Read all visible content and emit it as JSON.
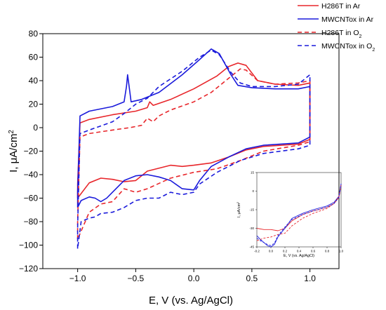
{
  "chart_data": [
    {
      "type": "line",
      "xlabel": "E, V (vs. Ag/AgCl)",
      "ylabel_main": "I, μA/cm",
      "ylabel_sup": "2",
      "xlim": [
        -1.3,
        1.25
      ],
      "ylim": [
        -120,
        80
      ],
      "xticks": [
        -1.0,
        -0.5,
        0.0,
        0.5,
        1.0
      ],
      "xtick_labels": [
        "−1.0",
        "−0.5",
        "0.0",
        "0.5",
        "1.0"
      ],
      "yticks": [
        -120,
        -100,
        -80,
        -60,
        -40,
        -20,
        0,
        20,
        40,
        60,
        80
      ],
      "ytick_labels": [
        "−120",
        "−100",
        "−80",
        "−60",
        "−40",
        "−20",
        "0",
        "20",
        "40",
        "60",
        "80"
      ],
      "grid": false,
      "legend": {
        "placement": "top-right",
        "entries": [
          {
            "text": "H286T in Ar",
            "sub": "",
            "color": "#e8262b",
            "dash": false
          },
          {
            "text": "MWCNTox in Ar",
            "sub": "",
            "color": "#1a1adb",
            "dash": false
          },
          {
            "text": "H286T in O",
            "sub": "2",
            "color": "#e8262b",
            "dash": true
          },
          {
            "text": "MWCNTox in O",
            "sub": "2",
            "color": "#1a1adb",
            "dash": true
          }
        ]
      },
      "series": [
        {
          "color": "#e8262b",
          "dash": false,
          "points": [
            [
              -1.0,
              -60
            ],
            [
              -1.0,
              -48
            ],
            [
              -0.98,
              4
            ],
            [
              -0.9,
              7
            ],
            [
              -0.7,
              11
            ],
            [
              -0.5,
              14
            ],
            [
              -0.4,
              17
            ],
            [
              -0.38,
              22
            ],
            [
              -0.35,
              19
            ],
            [
              -0.2,
              24
            ],
            [
              0.0,
              33
            ],
            [
              0.2,
              44
            ],
            [
              0.3,
              52
            ],
            [
              0.38,
              55
            ],
            [
              0.45,
              53
            ],
            [
              0.55,
              40
            ],
            [
              0.7,
              37
            ],
            [
              0.9,
              36
            ],
            [
              1.0,
              38
            ],
            [
              1.0,
              -10
            ],
            [
              0.9,
              -14
            ],
            [
              0.6,
              -16
            ],
            [
              0.45,
              -19
            ],
            [
              0.3,
              -25
            ],
            [
              0.15,
              -30
            ],
            [
              0.0,
              -32
            ],
            [
              -0.1,
              -33
            ],
            [
              -0.2,
              -32
            ],
            [
              -0.4,
              -37
            ],
            [
              -0.5,
              -45
            ],
            [
              -0.6,
              -46
            ],
            [
              -0.7,
              -44
            ],
            [
              -0.8,
              -43
            ],
            [
              -0.9,
              -47
            ],
            [
              -1.0,
              -60
            ]
          ]
        },
        {
          "color": "#1a1adb",
          "dash": false,
          "points": [
            [
              -1.0,
              -68
            ],
            [
              -1.0,
              -55
            ],
            [
              -0.98,
              10
            ],
            [
              -0.9,
              14
            ],
            [
              -0.7,
              18
            ],
            [
              -0.6,
              22
            ],
            [
              -0.58,
              35
            ],
            [
              -0.57,
              45
            ],
            [
              -0.55,
              30
            ],
            [
              -0.54,
              22
            ],
            [
              -0.45,
              24
            ],
            [
              -0.3,
              30
            ],
            [
              -0.1,
              45
            ],
            [
              0.05,
              58
            ],
            [
              0.15,
              67
            ],
            [
              0.22,
              63
            ],
            [
              0.32,
              45
            ],
            [
              0.38,
              36
            ],
            [
              0.5,
              34
            ],
            [
              0.7,
              33
            ],
            [
              0.9,
              33
            ],
            [
              1.0,
              35
            ],
            [
              1.0,
              -8
            ],
            [
              0.9,
              -13
            ],
            [
              0.6,
              -15
            ],
            [
              0.45,
              -18
            ],
            [
              0.3,
              -25
            ],
            [
              0.15,
              -33
            ],
            [
              0.05,
              -45
            ],
            [
              0.0,
              -53
            ],
            [
              -0.1,
              -52
            ],
            [
              -0.2,
              -45
            ],
            [
              -0.3,
              -42
            ],
            [
              -0.4,
              -40
            ],
            [
              -0.5,
              -41
            ],
            [
              -0.6,
              -45
            ],
            [
              -0.7,
              -55
            ],
            [
              -0.75,
              -60
            ],
            [
              -0.8,
              -63
            ],
            [
              -0.85,
              -60
            ],
            [
              -0.9,
              -59
            ],
            [
              -0.97,
              -62
            ],
            [
              -1.0,
              -68
            ]
          ]
        },
        {
          "color": "#e8262b",
          "dash": true,
          "points": [
            [
              -1.0,
              -95
            ],
            [
              -1.0,
              -80
            ],
            [
              -0.98,
              -8
            ],
            [
              -0.9,
              -5
            ],
            [
              -0.7,
              -2
            ],
            [
              -0.55,
              0
            ],
            [
              -0.45,
              2
            ],
            [
              -0.4,
              8
            ],
            [
              -0.35,
              5
            ],
            [
              -0.3,
              10
            ],
            [
              -0.2,
              15
            ],
            [
              0.0,
              22
            ],
            [
              0.15,
              30
            ],
            [
              0.3,
              42
            ],
            [
              0.4,
              50
            ],
            [
              0.45,
              49
            ],
            [
              0.55,
              40
            ],
            [
              0.7,
              37
            ],
            [
              0.9,
              38
            ],
            [
              1.0,
              40
            ],
            [
              1.0,
              -12
            ],
            [
              0.9,
              -15
            ],
            [
              0.6,
              -20
            ],
            [
              0.4,
              -28
            ],
            [
              0.2,
              -35
            ],
            [
              0.0,
              -38
            ],
            [
              -0.2,
              -43
            ],
            [
              -0.4,
              -52
            ],
            [
              -0.5,
              -55
            ],
            [
              -0.6,
              -52
            ],
            [
              -0.7,
              -63
            ],
            [
              -0.8,
              -65
            ],
            [
              -0.9,
              -72
            ],
            [
              -1.0,
              -95
            ]
          ]
        },
        {
          "color": "#1a1adb",
          "dash": true,
          "points": [
            [
              -1.0,
              -103
            ],
            [
              -1.0,
              -85
            ],
            [
              -0.98,
              -5
            ],
            [
              -0.9,
              -2
            ],
            [
              -0.7,
              5
            ],
            [
              -0.6,
              12
            ],
            [
              -0.5,
              20
            ],
            [
              -0.4,
              25
            ],
            [
              -0.3,
              35
            ],
            [
              -0.1,
              48
            ],
            [
              0.05,
              60
            ],
            [
              0.15,
              66
            ],
            [
              0.22,
              62
            ],
            [
              0.32,
              47
            ],
            [
              0.4,
              38
            ],
            [
              0.5,
              35
            ],
            [
              0.7,
              35
            ],
            [
              0.9,
              37
            ],
            [
              1.0,
              45
            ],
            [
              1.0,
              -15
            ],
            [
              0.9,
              -18
            ],
            [
              0.6,
              -22
            ],
            [
              0.4,
              -28
            ],
            [
              0.2,
              -38
            ],
            [
              0.05,
              -48
            ],
            [
              0.0,
              -55
            ],
            [
              -0.1,
              -57
            ],
            [
              -0.2,
              -55
            ],
            [
              -0.3,
              -60
            ],
            [
              -0.4,
              -60
            ],
            [
              -0.5,
              -62
            ],
            [
              -0.6,
              -68
            ],
            [
              -0.7,
              -72
            ],
            [
              -0.8,
              -73
            ],
            [
              -0.85,
              -76
            ],
            [
              -0.9,
              -77
            ],
            [
              -0.97,
              -80
            ],
            [
              -1.0,
              -103
            ]
          ]
        }
      ]
    },
    {
      "type": "line",
      "xlabel": "E, V (vs. Ag/AgCl)",
      "ylabel_main": "I, μA/cm",
      "ylabel_sup": "2",
      "xlim": [
        -0.2,
        1.0
      ],
      "ylim": [
        -45,
        15
      ],
      "xticks": [
        -0.2,
        0.0,
        0.2,
        0.4,
        0.6,
        0.8,
        1.0
      ],
      "xtick_labels": [
        "-0.2",
        "0.0",
        "0.2",
        "0.4",
        "0.6",
        "0.8",
        "1.0"
      ],
      "yticks": [
        -45,
        -30,
        -15,
        0,
        15
      ],
      "ytick_labels": [
        "-45",
        "-30",
        "-15",
        "0",
        "15"
      ],
      "series": [
        {
          "color": "#e8262b",
          "dash": false,
          "points": [
            [
              -0.2,
              -30
            ],
            [
              -0.1,
              -31
            ],
            [
              0.0,
              -31
            ],
            [
              0.1,
              -32
            ],
            [
              0.2,
              -30
            ],
            [
              0.3,
              -24
            ],
            [
              0.45,
              -19
            ],
            [
              0.6,
              -16
            ],
            [
              0.8,
              -13
            ],
            [
              0.9,
              -10
            ],
            [
              0.97,
              -5
            ],
            [
              1.0,
              5
            ]
          ]
        },
        {
          "color": "#1a1adb",
          "dash": false,
          "points": [
            [
              -0.2,
              -36
            ],
            [
              -0.15,
              -39
            ],
            [
              -0.05,
              -44
            ],
            [
              0.0,
              -45
            ],
            [
              0.05,
              -43
            ],
            [
              0.1,
              -37
            ],
            [
              0.2,
              -30
            ],
            [
              0.3,
              -22
            ],
            [
              0.45,
              -18
            ],
            [
              0.6,
              -15
            ],
            [
              0.8,
              -12
            ],
            [
              0.9,
              -9
            ],
            [
              0.97,
              -4
            ],
            [
              1.0,
              6
            ]
          ]
        },
        {
          "color": "#e8262b",
          "dash": true,
          "points": [
            [
              -0.2,
              -40
            ],
            [
              -0.1,
              -38
            ],
            [
              0.0,
              -37
            ],
            [
              0.1,
              -35
            ],
            [
              0.2,
              -34
            ],
            [
              0.3,
              -28
            ],
            [
              0.45,
              -22
            ],
            [
              0.6,
              -18
            ],
            [
              0.8,
              -14
            ],
            [
              0.9,
              -10
            ],
            [
              0.97,
              -4
            ],
            [
              1.0,
              5
            ]
          ]
        },
        {
          "color": "#1a1adb",
          "dash": true,
          "points": [
            [
              -0.2,
              -38
            ],
            [
              -0.15,
              -40
            ],
            [
              -0.05,
              -43
            ],
            [
              0.0,
              -44
            ],
            [
              0.05,
              -42
            ],
            [
              0.1,
              -36
            ],
            [
              0.2,
              -29
            ],
            [
              0.3,
              -23
            ],
            [
              0.45,
              -19
            ],
            [
              0.6,
              -16
            ],
            [
              0.8,
              -13
            ],
            [
              0.9,
              -10
            ],
            [
              0.97,
              -5
            ],
            [
              1.0,
              6
            ]
          ]
        }
      ]
    }
  ]
}
